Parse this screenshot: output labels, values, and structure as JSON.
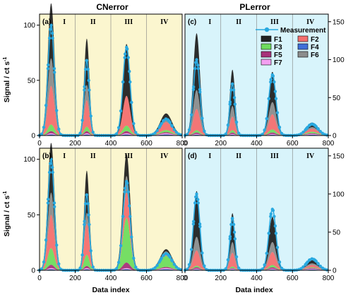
{
  "colors": {
    "cn_bg": "#fbf6cf",
    "pl_bg": "#d8f4fb",
    "measurement": "#29a9e0",
    "divider": "#7f7f7f"
  },
  "column_titles": {
    "left": "CNerror",
    "right": "PLerror"
  },
  "y_axis_label": "Signal / ct s",
  "y_axis_label_sup": "-1",
  "x_axis_label": "Data index",
  "legend": {
    "measurement": "Measurement",
    "items": [
      {
        "label": "F1",
        "color": "#222222"
      },
      {
        "label": "F2",
        "color": "#f46f6f"
      },
      {
        "label": "F3",
        "color": "#6fdc5e"
      },
      {
        "label": "F4",
        "color": "#3f6fd8"
      },
      {
        "label": "F5",
        "color": "#a8327a"
      },
      {
        "label": "F6",
        "color": "#8c8c8c"
      },
      {
        "label": "F7",
        "color": "#f39ff0"
      }
    ]
  },
  "chart_data": [
    {
      "panel": "(a)",
      "type": "area",
      "column": "CNerror",
      "xlim": [
        0,
        800
      ],
      "ylim": [
        0,
        110
      ],
      "xticks": [
        0,
        200,
        400,
        600,
        800
      ],
      "yticks": [
        0,
        50,
        100
      ],
      "segments": [
        "I",
        "II",
        "III",
        "IV"
      ],
      "segment_boundaries": [
        200,
        400,
        600
      ],
      "measurement": {
        "peaks": [
          {
            "x": 65,
            "y": 100,
            "w": 18
          },
          {
            "x": 265,
            "y": 68,
            "w": 14
          },
          {
            "x": 488,
            "y": 80,
            "w": 20
          },
          {
            "x": 710,
            "y": 15,
            "w": 32
          }
        ]
      },
      "components": {
        "F1": [
          50,
          42,
          47,
          6
        ],
        "F6": [
          25,
          14,
          0,
          2
        ],
        "F2": [
          35,
          24,
          27,
          7
        ],
        "F3": [
          6,
          4,
          5,
          2
        ],
        "F5": [
          2,
          2,
          2,
          1
        ],
        "F7": [
          1,
          1,
          1,
          1
        ],
        "F4": [
          1,
          1,
          1,
          1
        ]
      }
    },
    {
      "panel": "(b)",
      "type": "area",
      "column": "CNerror",
      "xlim": [
        0,
        800
      ],
      "ylim": [
        0,
        110
      ],
      "xticks": [
        0,
        200,
        400,
        600,
        800
      ],
      "yticks": [
        0,
        50,
        100
      ],
      "segments": [
        "I",
        "II",
        "III",
        "IV"
      ],
      "segment_boundaries": [
        200,
        400,
        600
      ],
      "measurement": {
        "peaks": [
          {
            "x": 65,
            "y": 100,
            "w": 18
          },
          {
            "x": 265,
            "y": 68,
            "w": 14
          },
          {
            "x": 488,
            "y": 80,
            "w": 20
          },
          {
            "x": 710,
            "y": 15,
            "w": 32
          }
        ]
      },
      "components": {
        "F1": [
          45,
          38,
          20,
          2
        ],
        "F6": [
          20,
          10,
          15,
          1
        ],
        "F2": [
          30,
          28,
          23,
          3
        ],
        "F3": [
          15,
          10,
          40,
          10
        ],
        "F5": [
          3,
          2,
          5,
          1
        ],
        "F7": [
          1,
          1,
          1,
          1
        ],
        "F4": [
          1,
          1,
          1,
          1
        ]
      }
    },
    {
      "panel": "(c)",
      "type": "area",
      "column": "PLerror",
      "xlim": [
        0,
        800
      ],
      "ylim": [
        0,
        160
      ],
      "xticks": [
        0,
        200,
        400,
        600,
        800
      ],
      "yticks": [
        0,
        50,
        100,
        150
      ],
      "segments": [
        "I",
        "II",
        "III",
        "IV"
      ],
      "segment_boundaries": [
        200,
        400,
        600
      ],
      "measurement": {
        "peaks": [
          {
            "x": 65,
            "y": 100,
            "w": 18
          },
          {
            "x": 265,
            "y": 68,
            "w": 14
          },
          {
            "x": 488,
            "y": 80,
            "w": 20
          },
          {
            "x": 710,
            "y": 15,
            "w": 32
          }
        ]
      },
      "components": {
        "F1": [
          75,
          48,
          40,
          6
        ],
        "F6": [
          25,
          14,
          16,
          2
        ],
        "F2": [
          28,
          18,
          20,
          4
        ],
        "F3": [
          3,
          3,
          4,
          2
        ],
        "F5": [
          2,
          2,
          2,
          1
        ],
        "F7": [
          1,
          1,
          1,
          1
        ],
        "F4": [
          1,
          1,
          1,
          1
        ]
      }
    },
    {
      "panel": "(d)",
      "type": "area",
      "column": "PLerror",
      "xlim": [
        0,
        800
      ],
      "ylim": [
        0,
        160
      ],
      "xticks": [
        0,
        200,
        400,
        600,
        800
      ],
      "yticks": [
        0,
        50,
        100,
        150
      ],
      "segments": [
        "I",
        "II",
        "III",
        "IV"
      ],
      "segment_boundaries": [
        200,
        400,
        600
      ],
      "measurement": {
        "peaks": [
          {
            "x": 65,
            "y": 100,
            "w": 18
          },
          {
            "x": 265,
            "y": 68,
            "w": 14
          },
          {
            "x": 488,
            "y": 80,
            "w": 20
          },
          {
            "x": 710,
            "y": 15,
            "w": 32
          }
        ]
      },
      "components": {
        "F1": [
          60,
          38,
          33,
          4
        ],
        "F6": [
          18,
          14,
          13,
          2
        ],
        "F2": [
          20,
          18,
          17,
          3
        ],
        "F3": [
          2,
          2,
          3,
          1
        ],
        "F5": [
          2,
          1,
          2,
          1
        ],
        "F7": [
          1,
          1,
          1,
          1
        ],
        "F4": [
          1,
          1,
          1,
          1
        ]
      }
    }
  ]
}
